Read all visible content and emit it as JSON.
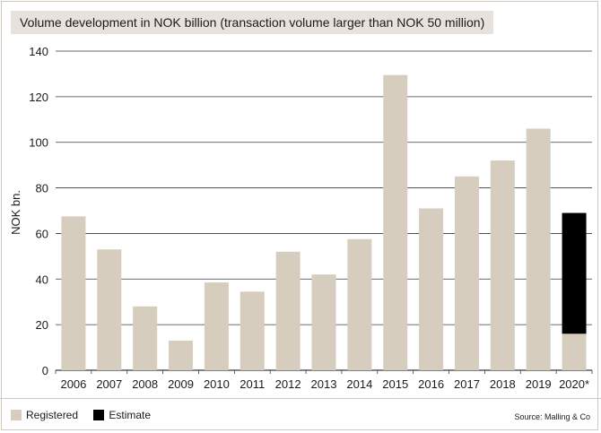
{
  "chart_data": {
    "type": "bar",
    "title": "Volume development in NOK billion (transaction volume larger than NOK 50 million)",
    "ylabel": "NOK bn.",
    "xlabel": "",
    "ylim": [
      0,
      140
    ],
    "yticks": [
      0,
      20,
      40,
      60,
      80,
      100,
      120,
      140
    ],
    "grid": true,
    "stacked": true,
    "categories": [
      "2006",
      "2007",
      "2008",
      "2009",
      "2010",
      "2011",
      "2012",
      "2013",
      "2014",
      "2015",
      "2016",
      "2017",
      "2018",
      "2019",
      "2020*"
    ],
    "series": [
      {
        "name": "Registered",
        "color": "#d6cdbf",
        "values": [
          67.5,
          53,
          28,
          13,
          38.5,
          34.5,
          52,
          42,
          57.5,
          129.5,
          71,
          85,
          92,
          106,
          16
        ]
      },
      {
        "name": "Estimate",
        "color": "#000000",
        "values": [
          0,
          0,
          0,
          0,
          0,
          0,
          0,
          0,
          0,
          0,
          0,
          0,
          0,
          0,
          53
        ]
      }
    ],
    "legend_position": "bottom-left"
  },
  "source": "Source: Malling & Co",
  "colors": {
    "grid": "#3a3a3a",
    "frame": "#cfcac0",
    "title_bg": "#e7e3dc"
  }
}
